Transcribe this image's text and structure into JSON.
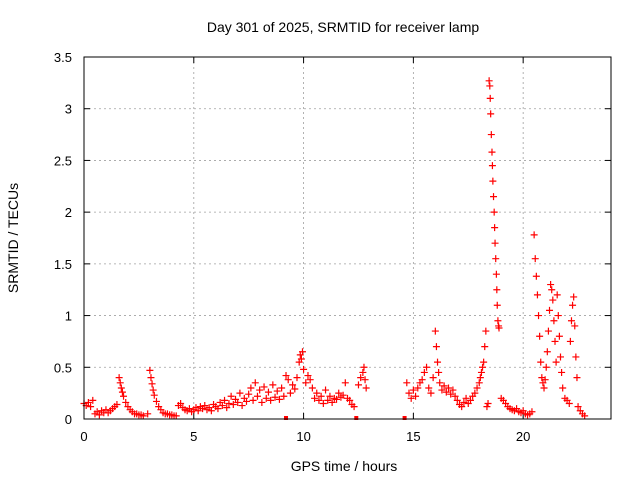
{
  "chart_data": {
    "type": "scatter",
    "title": "Day 301 of 2025, SRMTID for receiver lamp",
    "xlabel": "GPS time / hours",
    "ylabel": "SRMTID / TECUs",
    "xlim": [
      0,
      24
    ],
    "ylim": [
      0,
      3.5
    ],
    "grid": true,
    "x_ticks": [
      0,
      5,
      10,
      15,
      20
    ],
    "x_tick_labels": [
      "0",
      "5",
      "10",
      "15",
      "20"
    ],
    "y_ticks": [
      0,
      0.5,
      1,
      1.5,
      2,
      2.5,
      3,
      3.5
    ],
    "y_tick_labels": [
      "0",
      "0.5",
      "1",
      "1.5",
      "2",
      "2.5",
      "3",
      "3.5"
    ],
    "series": [
      {
        "name": "SRMTID",
        "color": "#ff0000",
        "marker": "plus",
        "points": [
          [
            0.0,
            0.15
          ],
          [
            0.1,
            0.13
          ],
          [
            0.2,
            0.16
          ],
          [
            0.3,
            0.12
          ],
          [
            0.4,
            0.18
          ],
          [
            0.5,
            0.05
          ],
          [
            0.6,
            0.07
          ],
          [
            0.7,
            0.04
          ],
          [
            0.8,
            0.08
          ],
          [
            0.9,
            0.06
          ],
          [
            1.0,
            0.09
          ],
          [
            1.1,
            0.06
          ],
          [
            1.2,
            0.08
          ],
          [
            1.3,
            0.1
          ],
          [
            1.4,
            0.12
          ],
          [
            1.5,
            0.14
          ],
          [
            1.6,
            0.4
          ],
          [
            1.65,
            0.35
          ],
          [
            1.7,
            0.3
          ],
          [
            1.75,
            0.26
          ],
          [
            1.8,
            0.22
          ],
          [
            1.9,
            0.16
          ],
          [
            2.0,
            0.12
          ],
          [
            2.1,
            0.09
          ],
          [
            2.2,
            0.07
          ],
          [
            2.3,
            0.05
          ],
          [
            2.4,
            0.05
          ],
          [
            2.5,
            0.04
          ],
          [
            2.6,
            0.04
          ],
          [
            2.7,
            0.03
          ],
          [
            2.9,
            0.05
          ],
          [
            3.0,
            0.47
          ],
          [
            3.05,
            0.4
          ],
          [
            3.1,
            0.34
          ],
          [
            3.15,
            0.28
          ],
          [
            3.2,
            0.23
          ],
          [
            3.3,
            0.17
          ],
          [
            3.4,
            0.12
          ],
          [
            3.5,
            0.09
          ],
          [
            3.6,
            0.06
          ],
          [
            3.7,
            0.05
          ],
          [
            3.8,
            0.05
          ],
          [
            3.9,
            0.04
          ],
          [
            4.0,
            0.04
          ],
          [
            4.1,
            0.03
          ],
          [
            4.2,
            0.03
          ],
          [
            4.3,
            0.13
          ],
          [
            4.4,
            0.15
          ],
          [
            4.5,
            0.11
          ],
          [
            4.6,
            0.09
          ],
          [
            4.7,
            0.08
          ],
          [
            4.8,
            0.1
          ],
          [
            4.9,
            0.07
          ],
          [
            5.0,
            0.09
          ],
          [
            5.1,
            0.11
          ],
          [
            5.2,
            0.08
          ],
          [
            5.3,
            0.12
          ],
          [
            5.4,
            0.1
          ],
          [
            5.5,
            0.13
          ],
          [
            5.6,
            0.09
          ],
          [
            5.7,
            0.11
          ],
          [
            5.8,
            0.08
          ],
          [
            5.9,
            0.14
          ],
          [
            6.0,
            0.12
          ],
          [
            6.1,
            0.1
          ],
          [
            6.2,
            0.16
          ],
          [
            6.3,
            0.13
          ],
          [
            6.4,
            0.18
          ],
          [
            6.5,
            0.11
          ],
          [
            6.6,
            0.15
          ],
          [
            6.7,
            0.22
          ],
          [
            6.8,
            0.14
          ],
          [
            6.9,
            0.19
          ],
          [
            7.0,
            0.16
          ],
          [
            7.1,
            0.25
          ],
          [
            7.2,
            0.13
          ],
          [
            7.3,
            0.2
          ],
          [
            7.4,
            0.17
          ],
          [
            7.5,
            0.24
          ],
          [
            7.6,
            0.3
          ],
          [
            7.7,
            0.18
          ],
          [
            7.8,
            0.35
          ],
          [
            7.9,
            0.22
          ],
          [
            8.0,
            0.28
          ],
          [
            8.1,
            0.16
          ],
          [
            8.2,
            0.31
          ],
          [
            8.3,
            0.2
          ],
          [
            8.4,
            0.26
          ],
          [
            8.5,
            0.18
          ],
          [
            8.6,
            0.33
          ],
          [
            8.7,
            0.21
          ],
          [
            8.8,
            0.27
          ],
          [
            8.9,
            0.19
          ],
          [
            9.0,
            0.3
          ],
          [
            9.1,
            0.22
          ],
          [
            9.2,
            0.42
          ],
          [
            9.3,
            0.38
          ],
          [
            9.4,
            0.25
          ],
          [
            9.5,
            0.33
          ],
          [
            9.6,
            0.29
          ],
          [
            9.7,
            0.4
          ],
          [
            9.8,
            0.55
          ],
          [
            9.85,
            0.62
          ],
          [
            9.9,
            0.58
          ],
          [
            9.95,
            0.65
          ],
          [
            10.0,
            0.48
          ],
          [
            10.1,
            0.35
          ],
          [
            10.2,
            0.42
          ],
          [
            10.3,
            0.38
          ],
          [
            10.4,
            0.3
          ],
          [
            10.5,
            0.2
          ],
          [
            10.6,
            0.25
          ],
          [
            10.7,
            0.18
          ],
          [
            10.8,
            0.22
          ],
          [
            10.9,
            0.15
          ],
          [
            11.0,
            0.28
          ],
          [
            11.1,
            0.18
          ],
          [
            11.2,
            0.22
          ],
          [
            11.3,
            0.16
          ],
          [
            11.4,
            0.2
          ],
          [
            11.5,
            0.19
          ],
          [
            11.6,
            0.25
          ],
          [
            11.7,
            0.21
          ],
          [
            11.8,
            0.23
          ],
          [
            11.9,
            0.35
          ],
          [
            12.0,
            0.2
          ],
          [
            12.1,
            0.18
          ],
          [
            12.2,
            0.14
          ],
          [
            12.3,
            0.12
          ],
          [
            12.5,
            0.33
          ],
          [
            12.6,
            0.4
          ],
          [
            12.7,
            0.45
          ],
          [
            12.75,
            0.5
          ],
          [
            12.8,
            0.38
          ],
          [
            12.85,
            0.3
          ],
          [
            14.7,
            0.35
          ],
          [
            14.8,
            0.25
          ],
          [
            14.9,
            0.2
          ],
          [
            15.0,
            0.28
          ],
          [
            15.1,
            0.22
          ],
          [
            15.2,
            0.3
          ],
          [
            15.3,
            0.35
          ],
          [
            15.4,
            0.38
          ],
          [
            15.5,
            0.45
          ],
          [
            15.6,
            0.5
          ],
          [
            15.7,
            0.3
          ],
          [
            15.8,
            0.25
          ],
          [
            15.9,
            0.4
          ],
          [
            16.0,
            0.85
          ],
          [
            16.05,
            0.7
          ],
          [
            16.1,
            0.55
          ],
          [
            16.15,
            0.45
          ],
          [
            16.2,
            0.35
          ],
          [
            16.3,
            0.28
          ],
          [
            16.4,
            0.32
          ],
          [
            16.5,
            0.26
          ],
          [
            16.6,
            0.3
          ],
          [
            16.7,
            0.24
          ],
          [
            16.8,
            0.28
          ],
          [
            16.9,
            0.22
          ],
          [
            17.0,
            0.18
          ],
          [
            17.1,
            0.14
          ],
          [
            17.2,
            0.12
          ],
          [
            17.3,
            0.16
          ],
          [
            17.4,
            0.2
          ],
          [
            17.5,
            0.15
          ],
          [
            17.6,
            0.18
          ],
          [
            17.7,
            0.22
          ],
          [
            17.8,
            0.25
          ],
          [
            17.9,
            0.3
          ],
          [
            18.0,
            0.35
          ],
          [
            18.05,
            0.4
          ],
          [
            18.1,
            0.45
          ],
          [
            18.15,
            0.5
          ],
          [
            18.2,
            0.55
          ],
          [
            18.25,
            0.7
          ],
          [
            18.3,
            0.85
          ],
          [
            18.35,
            0.12
          ],
          [
            18.4,
            0.15
          ],
          [
            18.45,
            3.27
          ],
          [
            18.48,
            3.22
          ],
          [
            18.5,
            3.1
          ],
          [
            18.52,
            2.95
          ],
          [
            18.55,
            2.75
          ],
          [
            18.58,
            2.58
          ],
          [
            18.6,
            2.45
          ],
          [
            18.62,
            2.3
          ],
          [
            18.65,
            2.15
          ],
          [
            18.68,
            2.0
          ],
          [
            18.7,
            1.85
          ],
          [
            18.72,
            1.7
          ],
          [
            18.75,
            1.55
          ],
          [
            18.78,
            1.4
          ],
          [
            18.8,
            1.25
          ],
          [
            18.82,
            1.1
          ],
          [
            18.85,
            0.95
          ],
          [
            18.88,
            0.9
          ],
          [
            18.9,
            0.88
          ],
          [
            19.0,
            0.2
          ],
          [
            19.1,
            0.18
          ],
          [
            19.2,
            0.15
          ],
          [
            19.3,
            0.12
          ],
          [
            19.4,
            0.1
          ],
          [
            19.5,
            0.09
          ],
          [
            19.6,
            0.08
          ],
          [
            19.7,
            0.1
          ],
          [
            19.8,
            0.07
          ],
          [
            19.9,
            0.06
          ],
          [
            20.0,
            0.08
          ],
          [
            20.1,
            0.05
          ],
          [
            20.2,
            0.04
          ],
          [
            20.3,
            0.05
          ],
          [
            20.4,
            0.07
          ],
          [
            20.5,
            1.78
          ],
          [
            20.55,
            1.55
          ],
          [
            20.6,
            1.38
          ],
          [
            20.65,
            1.2
          ],
          [
            20.7,
            1.0
          ],
          [
            20.75,
            0.8
          ],
          [
            20.8,
            0.55
          ],
          [
            20.85,
            0.4
          ],
          [
            20.9,
            0.35
          ],
          [
            20.95,
            0.3
          ],
          [
            21.0,
            0.38
          ],
          [
            21.05,
            0.5
          ],
          [
            21.1,
            0.65
          ],
          [
            21.15,
            0.85
          ],
          [
            21.2,
            1.05
          ],
          [
            21.25,
            1.3
          ],
          [
            21.3,
            1.25
          ],
          [
            21.35,
            1.15
          ],
          [
            21.4,
            0.95
          ],
          [
            21.45,
            0.75
          ],
          [
            21.5,
            0.55
          ],
          [
            21.55,
            1.2
          ],
          [
            21.6,
            1.0
          ],
          [
            21.65,
            0.8
          ],
          [
            21.7,
            0.6
          ],
          [
            21.75,
            0.45
          ],
          [
            21.8,
            0.3
          ],
          [
            21.9,
            0.2
          ],
          [
            22.0,
            0.18
          ],
          [
            22.1,
            0.15
          ],
          [
            22.15,
            0.75
          ],
          [
            22.2,
            0.95
          ],
          [
            22.25,
            1.1
          ],
          [
            22.3,
            1.18
          ],
          [
            22.35,
            0.9
          ],
          [
            22.4,
            0.6
          ],
          [
            22.45,
            0.4
          ],
          [
            22.5,
            0.12
          ],
          [
            22.6,
            0.08
          ],
          [
            22.7,
            0.05
          ],
          [
            22.8,
            0.03
          ]
        ]
      }
    ],
    "gap_markers_x": [
      9.2,
      12.4,
      14.6
    ]
  }
}
